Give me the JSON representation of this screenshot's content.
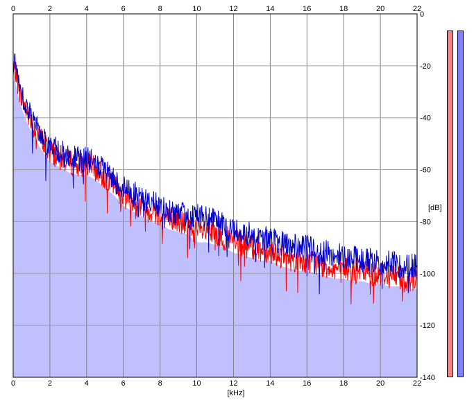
{
  "chart_data": {
    "type": "area",
    "title": "",
    "xlabel": "[kHz]",
    "ylabel": "[dB]",
    "xlim": [
      0,
      22
    ],
    "ylim": [
      -140,
      0
    ],
    "x_ticks": [
      "0",
      "2",
      "4",
      "6",
      "8",
      "10",
      "12",
      "14",
      "16",
      "18",
      "20",
      "22"
    ],
    "y_ticks": [
      "0",
      "-20",
      "-40",
      "-60",
      "-80",
      "-100",
      "-120",
      "-140"
    ],
    "grid": true,
    "series": [
      {
        "color": "#ff0000",
        "x": [
          0.1,
          0.3,
          0.5,
          0.75,
          1.1,
          1.5,
          2,
          2.5,
          3,
          3.5,
          4,
          4.5,
          5,
          5.5,
          6,
          6.5,
          7,
          7.5,
          8,
          8.5,
          9,
          9.5,
          10,
          10.5,
          11,
          11.5,
          12,
          12.5,
          13,
          13.5,
          14,
          14.5,
          15,
          15.5,
          16,
          16.5,
          17,
          17.5,
          18,
          18.5,
          19,
          19.5,
          20,
          20.5,
          21,
          21.5,
          22
        ],
        "values": [
          -22,
          -28,
          -33,
          -38,
          -43,
          -48,
          -53,
          -55,
          -57,
          -58,
          -58,
          -60,
          -63,
          -66,
          -70,
          -72,
          -74,
          -76,
          -77,
          -79,
          -80,
          -81,
          -84,
          -84,
          -85,
          -86,
          -88,
          -89,
          -90,
          -91,
          -91,
          -93,
          -94,
          -95,
          -95,
          -96,
          -97,
          -98,
          -98,
          -99,
          -99,
          -100,
          -100,
          -101,
          -101,
          -102,
          -102
        ]
      },
      {
        "color": "#0000cc",
        "x": [
          0.1,
          0.3,
          0.5,
          0.75,
          1.1,
          1.5,
          2,
          2.5,
          3,
          3.5,
          4,
          4.5,
          5,
          5.5,
          6,
          6.5,
          7,
          7.5,
          8,
          8.5,
          9,
          9.5,
          10,
          10.5,
          11,
          11.5,
          12,
          12.5,
          13,
          13.5,
          14,
          14.5,
          15,
          15.5,
          16,
          16.5,
          17,
          17.5,
          18,
          18.5,
          19,
          19.5,
          20,
          20.5,
          21,
          21.5,
          22
        ],
        "values": [
          -20,
          -26,
          -31,
          -36,
          -41,
          -46,
          -51,
          -53,
          -55,
          -56,
          -56,
          -58,
          -61,
          -64,
          -67,
          -69,
          -71,
          -73,
          -74,
          -76,
          -77,
          -78,
          -77,
          -79,
          -80,
          -82,
          -83,
          -84,
          -85,
          -86,
          -87,
          -88,
          -89,
          -90,
          -90,
          -91,
          -92,
          -93,
          -93,
          -94,
          -95,
          -95,
          -96,
          -96,
          -97,
          -97,
          -97
        ]
      }
    ],
    "fill_color": "#c0c0ff",
    "level_meters": [
      {
        "color": "#ff8080",
        "level": 1.0
      },
      {
        "color": "#8080ff",
        "level": 1.0
      }
    ]
  }
}
